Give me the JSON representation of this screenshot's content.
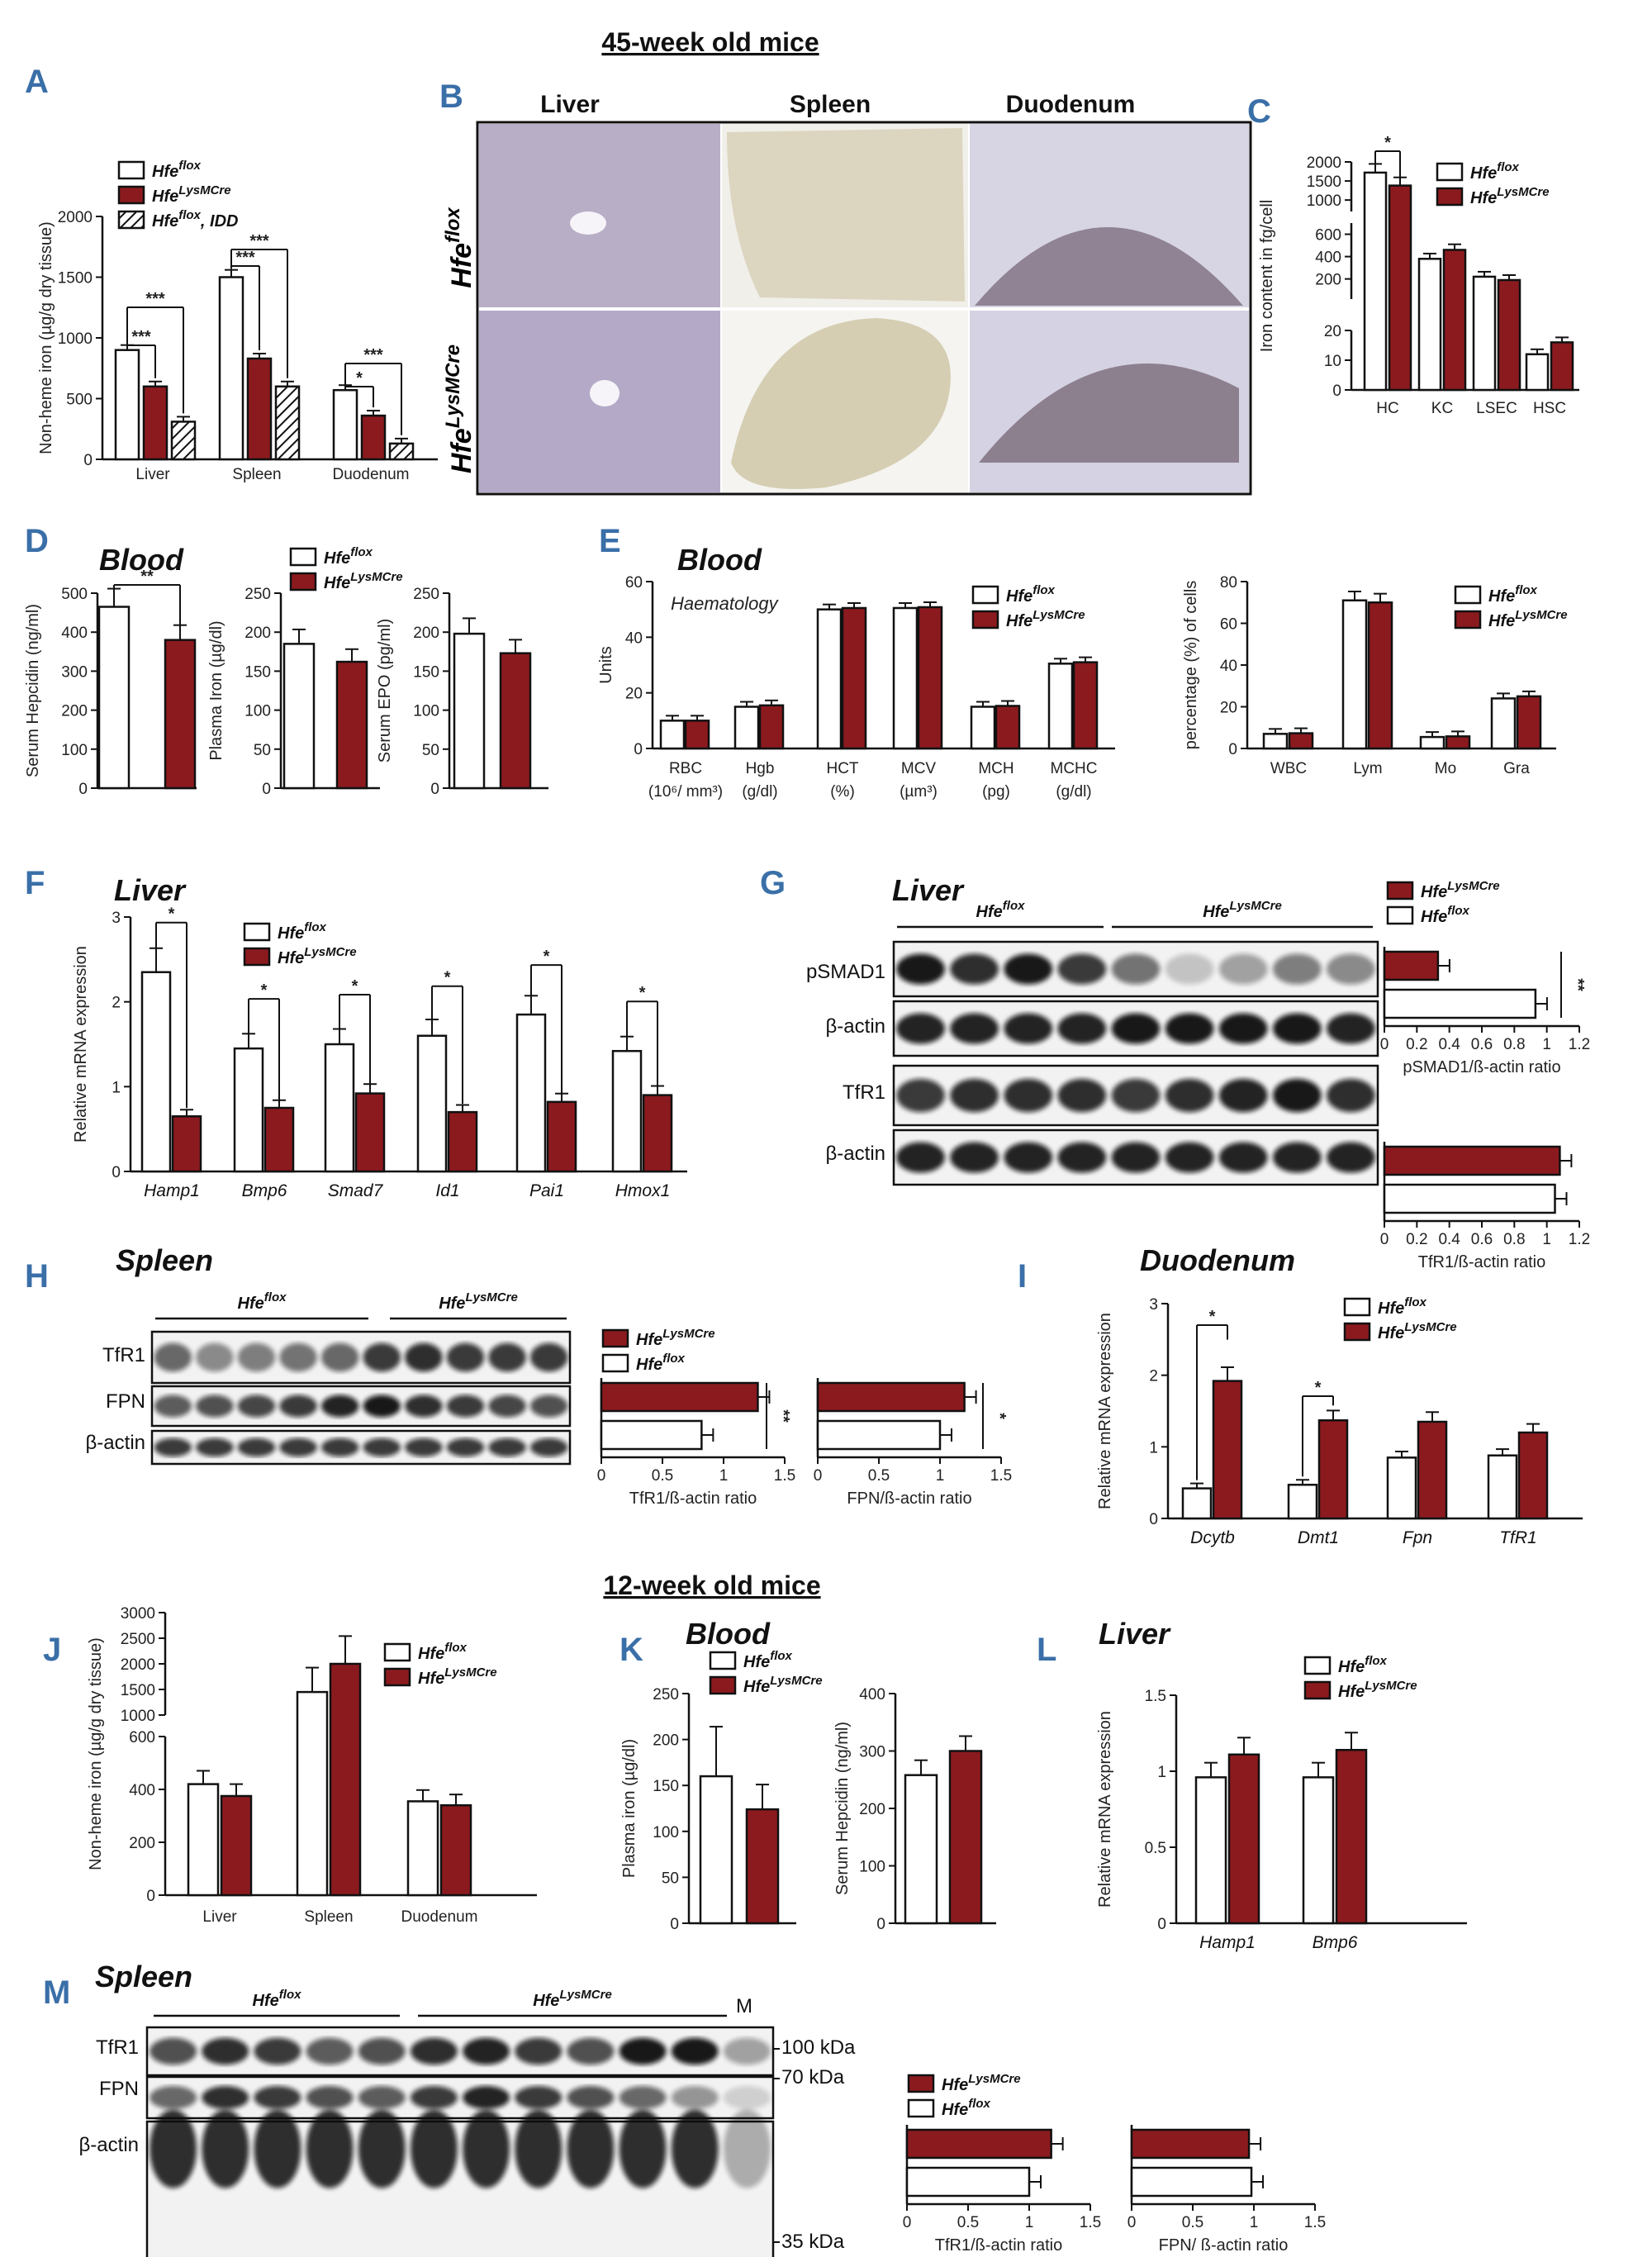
{
  "figure": {
    "title_45": "45-week old mice",
    "title_12": "12-week old mice",
    "flox": "Hfe",
    "flox_sup": "flox",
    "cre": "Hfe",
    "cre_sup": "LysMCre",
    "idd_suffix": ", IDD",
    "colors": {
      "flox": "#ffffff",
      "cre": "#8b1a1f",
      "panel_label": "#3a6fa8"
    }
  },
  "panels": {
    "A": {
      "label": "A",
      "ylabel": "Non-heme iron (µg/g dry tissue)"
    },
    "B": {
      "label": "B",
      "columns": [
        "Liver",
        "Spleen",
        "Duodenum"
      ]
    },
    "C": {
      "label": "C",
      "ylabel": "Iron content in fg/cell"
    },
    "D": {
      "label": "D",
      "title": "Blood"
    },
    "E": {
      "label": "E",
      "title": "Blood",
      "subtitle": "Haematology"
    },
    "F": {
      "label": "F",
      "title": "Liver"
    },
    "G": {
      "label": "G",
      "title": "Liver",
      "rows": [
        "pSMAD1",
        "β-actin",
        "TfR1",
        "β-actin"
      ]
    },
    "H": {
      "label": "H",
      "title": "Spleen",
      "rows": [
        "TfR1",
        "FPN",
        "β-actin"
      ]
    },
    "I": {
      "label": "I",
      "title": "Duodenum"
    },
    "J": {
      "label": "J"
    },
    "K": {
      "label": "K",
      "title": "Blood"
    },
    "L": {
      "label": "L",
      "title": "Liver"
    },
    "M": {
      "label": "M",
      "title": "Spleen",
      "rows": [
        "TfR1",
        "FPN",
        "β-actin"
      ],
      "marker": "M",
      "kda": [
        "100 kDa",
        "70 kDa",
        "35 kDa"
      ]
    }
  },
  "chart_data": [
    {
      "id": "A",
      "type": "bar",
      "categories": [
        "Liver",
        "Spleen",
        "Duodenum"
      ],
      "ylabel": "Non-heme iron (µg/g dry tissue)",
      "ylim": [
        0,
        2000
      ],
      "series": [
        {
          "name": "Hfe flox",
          "values": [
            900,
            1500,
            570
          ]
        },
        {
          "name": "Hfe LysMCre",
          "values": [
            600,
            830,
            360
          ]
        },
        {
          "name": "Hfe flox, IDD",
          "values": [
            310,
            600,
            130
          ]
        }
      ],
      "annotations": [
        "***",
        "***",
        "***",
        "***",
        "***",
        "*"
      ]
    },
    {
      "id": "C",
      "type": "bar",
      "categories": [
        "HC",
        "KC",
        "LSEC",
        "HSC"
      ],
      "ylabel": "Iron content in fg/cell",
      "series": [
        {
          "name": "Hfe flox",
          "values": [
            1720,
            380,
            220,
            12
          ]
        },
        {
          "name": "Hfe LysMCre",
          "values": [
            1380,
            460,
            190,
            16
          ]
        }
      ],
      "annotations": [
        "*"
      ]
    },
    {
      "id": "D1",
      "type": "bar",
      "ylabel": "Serum Hepcidin (ng/ml)",
      "ylim": [
        0,
        500
      ],
      "series": [
        {
          "name": "Hfe flox",
          "values": [
            465
          ]
        },
        {
          "name": "Hfe LysMCre",
          "values": [
            380
          ]
        }
      ],
      "annotations": [
        "**"
      ]
    },
    {
      "id": "D2",
      "type": "bar",
      "ylabel": "Plasma Iron (µg/dl)",
      "ylim": [
        0,
        250
      ],
      "series": [
        {
          "name": "Hfe flox",
          "values": [
            185
          ]
        },
        {
          "name": "Hfe LysMCre",
          "values": [
            162
          ]
        }
      ]
    },
    {
      "id": "D3",
      "type": "bar",
      "ylabel": "Serum EPO (pg/ml)",
      "ylim": [
        0,
        250
      ],
      "series": [
        {
          "name": "Hfe flox",
          "values": [
            198
          ]
        },
        {
          "name": "Hfe LysMCre",
          "values": [
            173
          ]
        }
      ]
    },
    {
      "id": "E1",
      "type": "bar",
      "categories": [
        "RBC (10⁶/ mm³)",
        "Hgb (g/dl)",
        "HCT (%)",
        "MCV (µm³)",
        "MCH (pg)",
        "MCHC (g/dl)"
      ],
      "ylabel": "Units",
      "ylim": [
        0,
        60
      ],
      "series": [
        {
          "name": "Hfe flox",
          "values": [
            10,
            15,
            50,
            50.5,
            15,
            30.5
          ]
        },
        {
          "name": "Hfe LysMCre",
          "values": [
            10,
            15.5,
            50.5,
            50.8,
            15.3,
            31
          ]
        }
      ]
    },
    {
      "id": "E2",
      "type": "bar",
      "categories": [
        "WBC",
        "Lym",
        "Mo",
        "Gra"
      ],
      "ylabel": "percentage (%) of cells",
      "ylim": [
        0,
        80
      ],
      "series": [
        {
          "name": "Hfe flox",
          "values": [
            7,
            71,
            5.5,
            24
          ]
        },
        {
          "name": "Hfe LysMCre",
          "values": [
            7.3,
            70,
            5.8,
            25
          ]
        }
      ]
    },
    {
      "id": "F",
      "type": "bar",
      "categories": [
        "Hamp1",
        "Bmp6",
        "Smad7",
        "Id1",
        "Pai1",
        "Hmox1"
      ],
      "ylabel": "Relative mRNA expression",
      "ylim": [
        0,
        3
      ],
      "series": [
        {
          "name": "Hfe flox",
          "values": [
            2.35,
            1.45,
            1.5,
            1.6,
            1.85,
            1.42
          ]
        },
        {
          "name": "Hfe LysMCre",
          "values": [
            0.65,
            0.75,
            0.92,
            0.7,
            0.82,
            0.9
          ]
        }
      ],
      "annotations": [
        "*",
        "*",
        "*",
        "*",
        "*",
        "*"
      ]
    },
    {
      "id": "G1",
      "type": "bar",
      "orientation": "horizontal",
      "xlabel": "pSMAD1/ß-actin ratio",
      "xlim": [
        0,
        1.2
      ],
      "series": [
        {
          "name": "Hfe LysMCre",
          "values": [
            0.33
          ]
        },
        {
          "name": "Hfe flox",
          "values": [
            0.93
          ]
        }
      ],
      "annotations": [
        "**"
      ]
    },
    {
      "id": "G2",
      "type": "bar",
      "orientation": "horizontal",
      "xlabel": "TfR1/ß-actin ratio",
      "xlim": [
        0,
        1.2
      ],
      "series": [
        {
          "name": "Hfe LysMCre",
          "values": [
            1.08
          ]
        },
        {
          "name": "Hfe flox",
          "values": [
            1.05
          ]
        }
      ]
    },
    {
      "id": "H1",
      "type": "bar",
      "orientation": "horizontal",
      "xlabel": "TfR1/ß-actin ratio",
      "xlim": [
        0,
        1.5
      ],
      "series": [
        {
          "name": "Hfe LysMCre",
          "values": [
            1.28
          ]
        },
        {
          "name": "Hfe flox",
          "values": [
            0.82
          ]
        }
      ],
      "annotations": [
        "**"
      ]
    },
    {
      "id": "H2",
      "type": "bar",
      "orientation": "horizontal",
      "xlabel": "FPN/ß-actin ratio",
      "xlim": [
        0,
        1.5
      ],
      "series": [
        {
          "name": "Hfe LysMCre",
          "values": [
            1.2
          ]
        },
        {
          "name": "Hfe flox",
          "values": [
            1.0
          ]
        }
      ],
      "annotations": [
        "*"
      ]
    },
    {
      "id": "I",
      "type": "bar",
      "categories": [
        "Dcytb",
        "Dmt1",
        "Fpn",
        "TfR1"
      ],
      "ylabel": "Relative mRNA expression",
      "ylim": [
        0,
        3
      ],
      "series": [
        {
          "name": "Hfe flox",
          "values": [
            0.42,
            0.47,
            0.85,
            0.88
          ]
        },
        {
          "name": "Hfe LysMCre",
          "values": [
            1.92,
            1.37,
            1.35,
            1.2
          ]
        }
      ],
      "annotations": [
        "*",
        "*"
      ]
    },
    {
      "id": "J",
      "type": "bar",
      "categories": [
        "Liver",
        "Spleen",
        "Duodenum"
      ],
      "ylabel": "Non-heme iron (µg/g dry tissue)",
      "series": [
        {
          "name": "Hfe flox",
          "values": [
            420,
            1450,
            355
          ]
        },
        {
          "name": "Hfe LysMCre",
          "values": [
            375,
            2000,
            340
          ]
        }
      ]
    },
    {
      "id": "K1",
      "type": "bar",
      "ylabel": "Plasma iron (µg/dl)",
      "ylim": [
        0,
        250
      ],
      "series": [
        {
          "name": "Hfe flox",
          "values": [
            160
          ]
        },
        {
          "name": "Hfe LysMCre",
          "values": [
            124
          ]
        }
      ]
    },
    {
      "id": "K2",
      "type": "bar",
      "ylabel": "Serum Hepcidin (ng/ml)",
      "ylim": [
        0,
        400
      ],
      "series": [
        {
          "name": "Hfe flox",
          "values": [
            258
          ]
        },
        {
          "name": "Hfe LysMCre",
          "values": [
            300
          ]
        }
      ]
    },
    {
      "id": "L",
      "type": "bar",
      "categories": [
        "Hamp1",
        "Bmp6"
      ],
      "ylabel": "Relative mRNA expression",
      "ylim": [
        0,
        1.5
      ],
      "series": [
        {
          "name": "Hfe flox",
          "values": [
            0.96,
            0.96
          ]
        },
        {
          "name": "Hfe LysMCre",
          "values": [
            1.11,
            1.14
          ]
        }
      ]
    },
    {
      "id": "M1",
      "type": "bar",
      "orientation": "horizontal",
      "xlabel": "TfR1/ß-actin ratio",
      "xlim": [
        0,
        1.5
      ],
      "series": [
        {
          "name": "Hfe LysMCre",
          "values": [
            1.18
          ]
        },
        {
          "name": "Hfe flox",
          "values": [
            1.0
          ]
        }
      ]
    },
    {
      "id": "M2",
      "type": "bar",
      "orientation": "horizontal",
      "xlabel": "FPN/ ß-actin ratio",
      "xlim": [
        0,
        1.5
      ],
      "series": [
        {
          "name": "Hfe LysMCre",
          "values": [
            0.96
          ]
        },
        {
          "name": "Hfe flox",
          "values": [
            0.98
          ]
        }
      ]
    }
  ]
}
